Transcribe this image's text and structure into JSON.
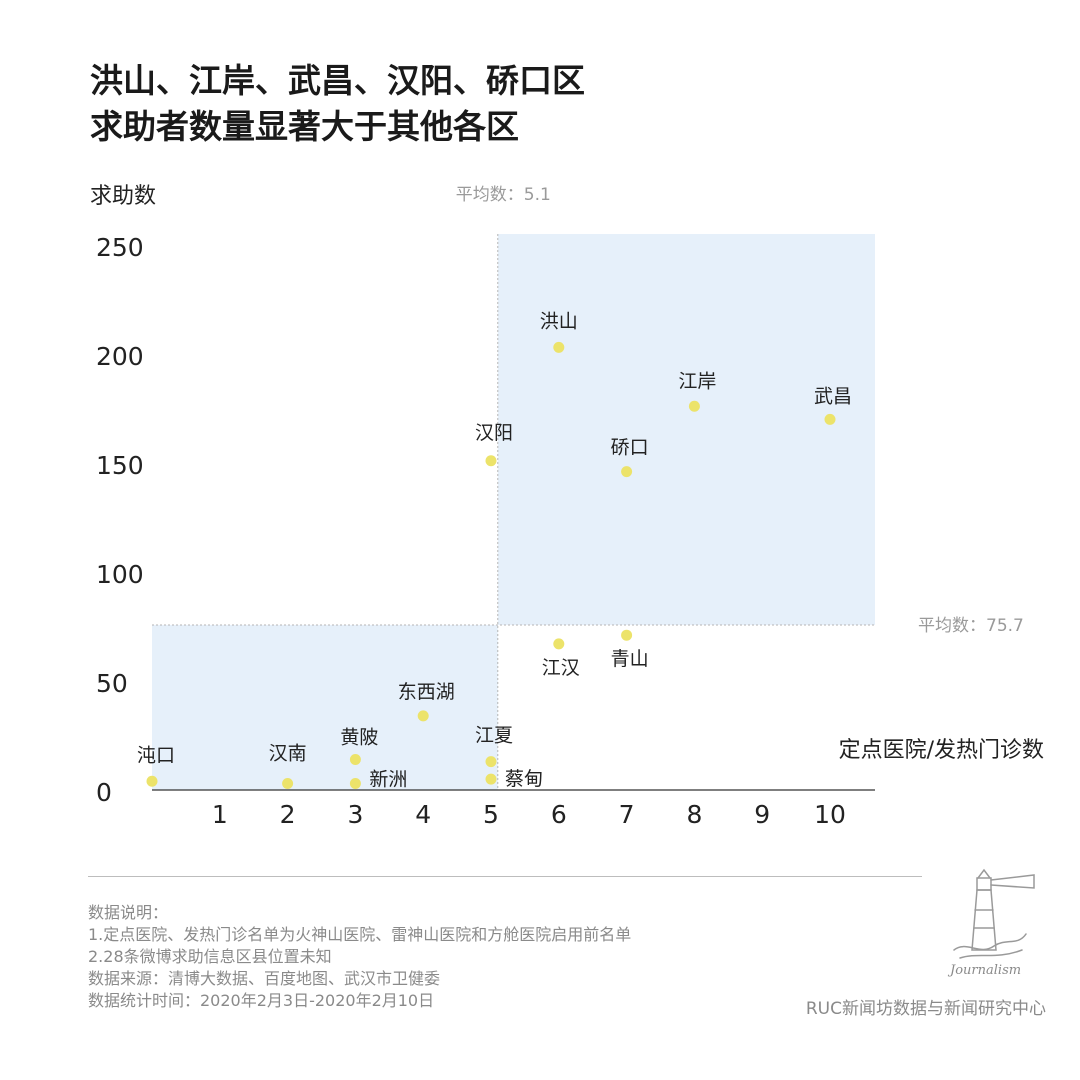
{
  "title_lines": [
    "洪山、江岸、武昌、汉阳、硚口区",
    "求助者数量显著大于其他各区"
  ],
  "chart_data": {
    "type": "scatter",
    "ylabel": "求助数",
    "xlabel": "定点医院/发热门诊数",
    "x_ticks": [
      "1",
      "2",
      "3",
      "4",
      "5",
      "6",
      "7",
      "8",
      "9",
      "10"
    ],
    "y_ticks": [
      "0",
      "50",
      "100",
      "150",
      "200",
      "250"
    ],
    "xlim": [
      0,
      10.6
    ],
    "ylim": [
      0,
      255
    ],
    "avg_x": 5.1,
    "avg_y": 75.7,
    "avg_x_label": "平均数：5.1",
    "avg_y_label": "平均数：75.7",
    "points": [
      {
        "name": "洪山",
        "x": 6,
        "y": 203
      },
      {
        "name": "江岸",
        "x": 8,
        "y": 176
      },
      {
        "name": "武昌",
        "x": 10,
        "y": 170
      },
      {
        "name": "汉阳",
        "x": 5,
        "y": 151
      },
      {
        "name": "硚口",
        "x": 7,
        "y": 146
      },
      {
        "name": "江汉",
        "x": 6,
        "y": 67
      },
      {
        "name": "青山",
        "x": 7,
        "y": 71
      },
      {
        "name": "东西湖",
        "x": 4,
        "y": 34
      },
      {
        "name": "江夏",
        "x": 5,
        "y": 13
      },
      {
        "name": "蔡甸",
        "x": 5,
        "y": 5
      },
      {
        "name": "黄陂",
        "x": 3,
        "y": 14
      },
      {
        "name": "新洲",
        "x": 3,
        "y": 3
      },
      {
        "name": "汉南",
        "x": 2,
        "y": 3
      },
      {
        "name": "沌口",
        "x": 0,
        "y": 4
      }
    ],
    "point_color": "#ece36a",
    "shade_color": "#e6f0fa"
  },
  "notes": [
    "数据说明：",
    "1.定点医院、发热门诊名单为火神山医院、雷神山医院和方舱医院启用前名单",
    "2.28条微博求助信息区县位置未知",
    "数据来源：清博大数据、百度地图、武汉市卫健委",
    "数据统计时间：2020年2月3日-2020年2月10日"
  ],
  "credit": "RUC新闻坊数据与新闻研究中心",
  "logo": {
    "text": "Journalism",
    "icon": "lighthouse-logo-icon"
  }
}
